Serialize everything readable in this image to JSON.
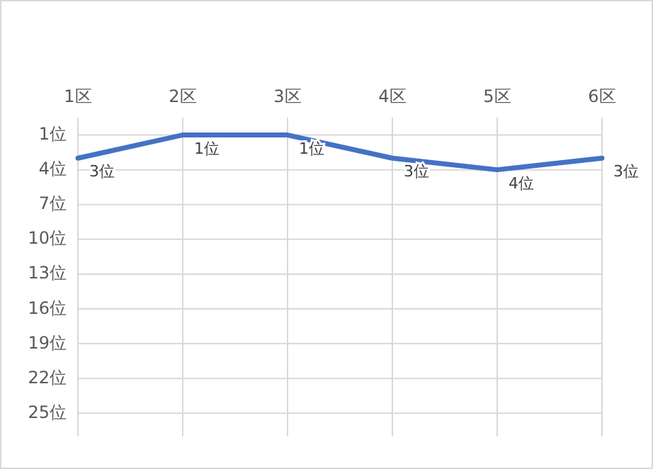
{
  "chart_data": {
    "type": "line",
    "categories": [
      "1区",
      "2区",
      "3区",
      "4区",
      "5区",
      "6区"
    ],
    "series": [
      {
        "color": "#4472c4",
        "values": [
          3,
          1,
          1,
          3,
          4,
          3
        ],
        "value_labels": [
          "3位",
          "1位",
          "1位",
          "3位",
          "4位",
          "3位"
        ]
      }
    ],
    "ylim": [
      27,
      -0.5
    ],
    "yticks": [
      {
        "value": 1,
        "label": "1位"
      },
      {
        "value": 4,
        "label": "4位"
      },
      {
        "value": 7,
        "label": "7位"
      },
      {
        "value": 10,
        "label": "10位"
      },
      {
        "value": 13,
        "label": "13位"
      },
      {
        "value": 16,
        "label": "16位"
      },
      {
        "value": 19,
        "label": "19位"
      },
      {
        "value": 22,
        "label": "22位"
      },
      {
        "value": 25,
        "label": "25位"
      }
    ],
    "grid": true,
    "marker": "none",
    "line_style": "solid"
  }
}
